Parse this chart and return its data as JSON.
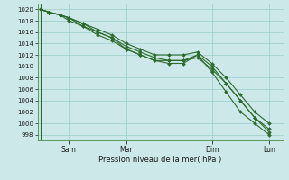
{
  "title": "Pression niveau de la mer( hPa )",
  "bg_color": "#cce8e8",
  "grid_color": "#99cccc",
  "line_color": "#2d6a2d",
  "ylim": [
    997,
    1021
  ],
  "yticks": [
    998,
    1000,
    1002,
    1004,
    1006,
    1008,
    1010,
    1012,
    1014,
    1016,
    1018,
    1020
  ],
  "xtick_labels": [
    "Sam",
    "Mar",
    "Dim",
    "Lun"
  ],
  "xtick_positions": [
    1,
    3,
    6,
    8
  ],
  "vline_x": 0,
  "xlim": [
    -0.1,
    8.5
  ],
  "lines": [
    {
      "x": [
        0,
        0.3,
        0.7,
        1.0,
        1.5,
        2.0,
        2.5,
        3.0,
        3.5,
        4.0,
        4.5,
        5.0,
        5.5,
        6.0,
        6.5,
        7.0,
        7.5,
        8.0
      ],
      "y": [
        1020,
        1019.5,
        1019,
        1018.5,
        1017,
        1016,
        1015,
        1013,
        1012,
        1011,
        1011,
        1011,
        1012,
        1010,
        1007,
        1004,
        1001,
        999
      ]
    },
    {
      "x": [
        0,
        0.3,
        0.7,
        1.0,
        1.5,
        2.0,
        2.5,
        3.0,
        3.5,
        4.0,
        4.5,
        5.0,
        5.5,
        6.0,
        6.5,
        7.0,
        7.5,
        8.0
      ],
      "y": [
        1020,
        1019.5,
        1019,
        1018.5,
        1017.5,
        1016.5,
        1015.5,
        1014,
        1013,
        1012,
        1012,
        1012,
        1012.5,
        1010.5,
        1008,
        1005,
        1002,
        1000
      ]
    },
    {
      "x": [
        0,
        0.3,
        0.7,
        1.0,
        1.5,
        2.0,
        2.5,
        3.0,
        3.5,
        4.0,
        4.5,
        5.0,
        5.5,
        6.0,
        6.5,
        7.0,
        7.5,
        8.0
      ],
      "y": [
        1020,
        1019.5,
        1019,
        1018.5,
        1017.5,
        1016,
        1015,
        1013.5,
        1012.5,
        1011.5,
        1011,
        1011,
        1011.5,
        1009.5,
        1007,
        1004,
        1001,
        998.5
      ]
    },
    {
      "x": [
        0,
        0.3,
        0.7,
        1.0,
        1.5,
        2.0,
        2.5,
        3.0,
        3.5,
        4.0,
        4.5,
        5.0,
        5.5,
        6.0,
        6.5,
        7.0,
        7.5,
        8.0
      ],
      "y": [
        1020,
        1019.5,
        1019,
        1018,
        1017,
        1015.5,
        1014.5,
        1013,
        1012,
        1011,
        1010.5,
        1010.5,
        1012,
        1009,
        1005.5,
        1002,
        1000,
        998
      ]
    }
  ]
}
